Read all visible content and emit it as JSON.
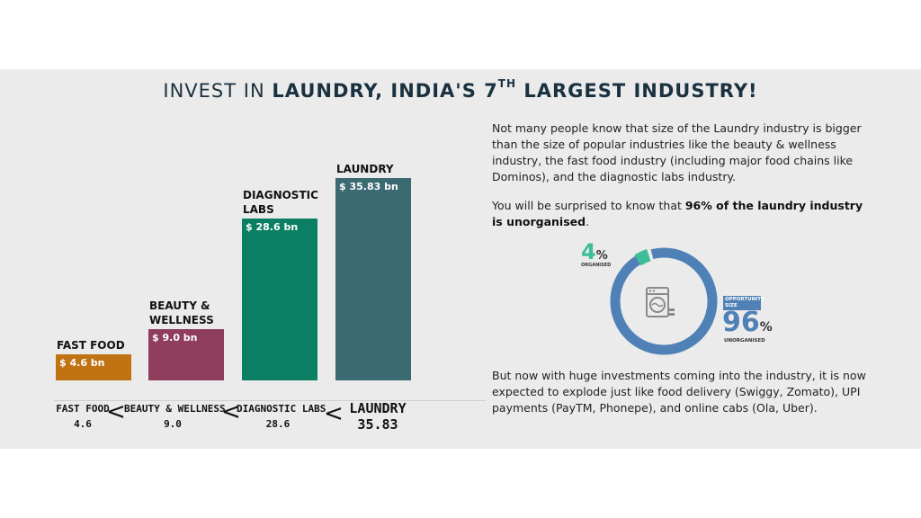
{
  "title": {
    "prefix": "INVEST IN ",
    "bold": "LAUNDRY, INDIA'S 7",
    "sup": "TH",
    "suffix": " LARGEST INDUSTRY!"
  },
  "chart_data": [
    {
      "type": "bar",
      "categories": [
        "FAST FOOD",
        "BEAUTY & WELLNESS",
        "DIAGNOSTIC LABS",
        "LAUNDRY"
      ],
      "values": [
        4.6,
        9.0,
        28.6,
        35.83
      ],
      "value_labels": [
        "$ 4.6 bn",
        "$ 9.0 bn",
        "$ 28.6 bn",
        "$ 35.83 bn"
      ],
      "bar_labels": [
        [
          "FAST FOOD"
        ],
        [
          "BEAUTY &",
          "WELLNESS"
        ],
        [
          "DIAGNOSTIC",
          "LABS"
        ],
        [
          "LAUNDRY"
        ]
      ],
      "colors": [
        "#c07313",
        "#8e3d5c",
        "#0b7f63",
        "#3c6a73"
      ],
      "ylim": [
        0,
        35.83
      ]
    },
    {
      "type": "pie",
      "categories": [
        "ORGANISED",
        "UNORGANISED"
      ],
      "values": [
        4,
        96
      ],
      "colors": [
        "#3ebd98",
        "#4f81b6"
      ]
    }
  ],
  "comparison": {
    "items": [
      {
        "name": "FAST FOOD",
        "value": "4.6"
      },
      {
        "name": "BEAUTY & WELLNESS",
        "value": "9.0"
      },
      {
        "name": "DIAGNOSTIC LABS",
        "value": "28.6"
      },
      {
        "name": "LAUNDRY",
        "value": "35.83"
      }
    ],
    "separator": "<"
  },
  "text": {
    "p1": "Not many people know that size of the Laundry industry is bigger than the size of popular industries like the beauty & wellness industry, the fast food industry (including major food chains like Dominos), and the diagnostic labs industry.",
    "p2_prefix": "You will be surprised to know that ",
    "p2_bold": "96% of the laundry industry is unorganised",
    "p2_suffix": ".",
    "p3": "But now with huge investments coming into the industry, it is now expected to explode just like food delivery (Swiggy, Zomato), UPI payments (PayTM, Phonepe), and online cabs (Ola, Uber)."
  },
  "donut": {
    "organised_value": "4",
    "percent_sign": "%",
    "organised_label": "ORGANISED",
    "opportunity_label_1": "OPPORTUNITY",
    "opportunity_label_2": "SIZE",
    "unorganised_value": "96",
    "unorganised_label": "UNORGANISED",
    "icon": "washing-machine-icon"
  }
}
